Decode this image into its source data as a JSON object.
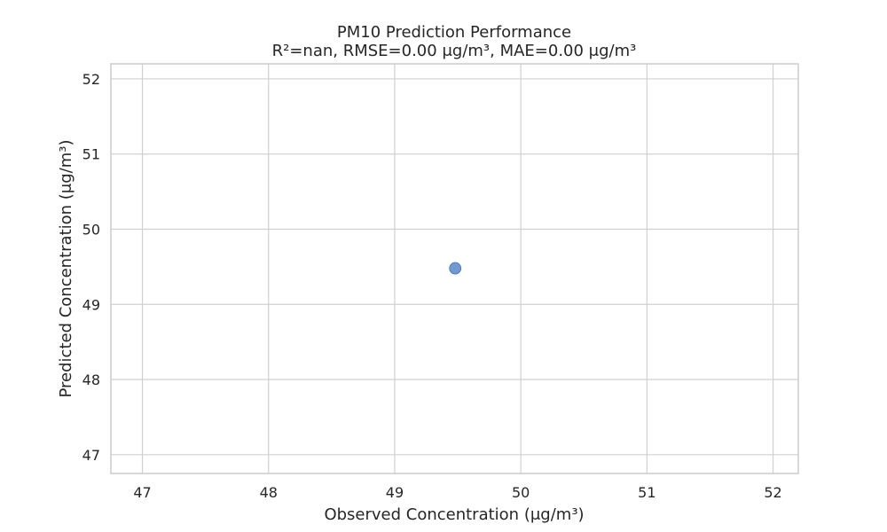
{
  "chart_data": {
    "type": "scatter",
    "title": "PM10 Prediction Performance",
    "subtitle": "R²=nan, RMSE=0.00 μg/m³, MAE=0.00 μg/m³",
    "xlabel": "Observed Concentration (μg/m³)",
    "ylabel": "Predicted Concentration (μg/m³)",
    "xlim": [
      46.75,
      52.2
    ],
    "ylim": [
      46.75,
      52.2
    ],
    "xticks": [
      47,
      48,
      49,
      50,
      51,
      52
    ],
    "yticks": [
      47,
      48,
      49,
      50,
      51,
      52
    ],
    "grid": true,
    "points": [
      {
        "x": 49.48,
        "y": 49.48
      }
    ],
    "point_color": "#5b86c5"
  }
}
